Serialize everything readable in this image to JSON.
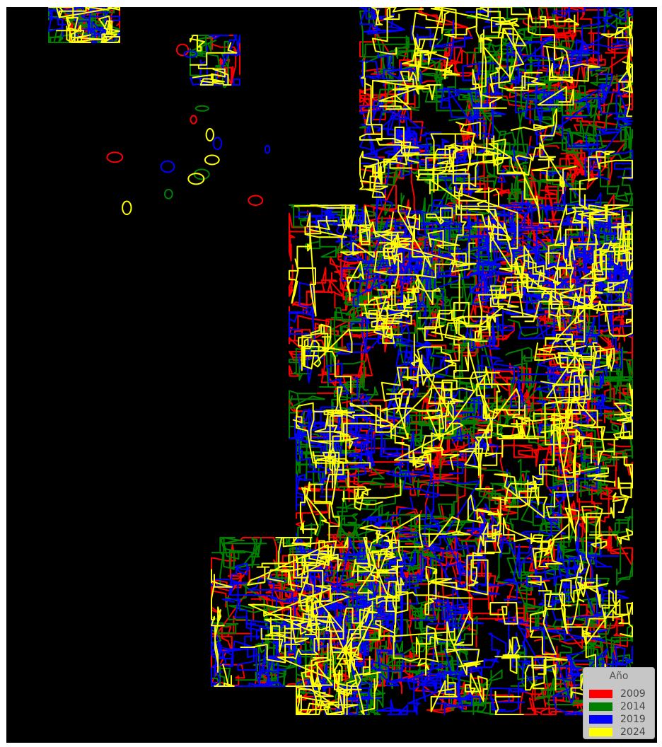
{
  "legend": {
    "title": "Año",
    "placement": "bottom-right",
    "entries": [
      {
        "label": "2009",
        "color": "#ff0000"
      },
      {
        "label": "2014",
        "color": "#008000"
      },
      {
        "label": "2019",
        "color": "#0000ff"
      },
      {
        "label": "2024",
        "color": "#ffff00"
      }
    ]
  },
  "map": {
    "background": "#000000",
    "style": "year contour outlines"
  }
}
